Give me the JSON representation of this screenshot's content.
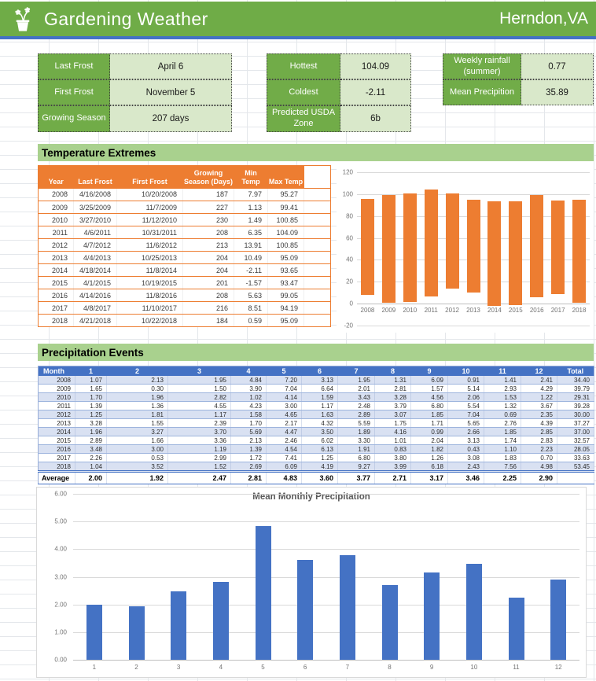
{
  "header": {
    "title": "Gardening Weather",
    "location": "Herndon,VA",
    "icon": "flower-pot-icon"
  },
  "summary_cards": [
    {
      "label": "Last Frost",
      "value": "April 6"
    },
    {
      "label": "First Frost",
      "value": "November 5"
    },
    {
      "label": "Growing Season",
      "value": "207 days"
    },
    {
      "label": "Hottest",
      "value": "104.09"
    },
    {
      "label": "Coldest",
      "value": "-2.11"
    },
    {
      "label": "Predicted USDA Zone",
      "value": "6b"
    },
    {
      "label": "Weekly rainfall (summer)",
      "value": "0.77"
    },
    {
      "label": "Mean Precipition",
      "value": "35.89"
    }
  ],
  "temperature_section": {
    "title": "Temperature Extremes",
    "table": {
      "headers": [
        "Year",
        "Last Frost",
        "First Frost",
        "Growing Season (Days)",
        "Min Temp",
        "Max Temp"
      ],
      "rows": [
        [
          "2008",
          "4/16/2008",
          "10/20/2008",
          "187",
          "7.97",
          "95.27"
        ],
        [
          "2009",
          "3/25/2009",
          "11/7/2009",
          "227",
          "1.13",
          "99.41"
        ],
        [
          "2010",
          "3/27/2010",
          "11/12/2010",
          "230",
          "1.49",
          "100.85"
        ],
        [
          "2011",
          "4/6/2011",
          "10/31/2011",
          "208",
          "6.35",
          "104.09"
        ],
        [
          "2012",
          "4/7/2012",
          "11/6/2012",
          "213",
          "13.91",
          "100.85"
        ],
        [
          "2013",
          "4/4/2013",
          "10/25/2013",
          "204",
          "10.49",
          "95.09"
        ],
        [
          "2014",
          "4/18/2014",
          "11/8/2014",
          "204",
          "-2.11",
          "93.65"
        ],
        [
          "2015",
          "4/1/2015",
          "10/19/2015",
          "201",
          "-1.57",
          "93.47"
        ],
        [
          "2016",
          "4/14/2016",
          "11/8/2016",
          "208",
          "5.63",
          "99.05"
        ],
        [
          "2017",
          "4/8/2017",
          "11/10/2017",
          "216",
          "8.51",
          "94.19"
        ],
        [
          "2018",
          "4/21/2018",
          "10/22/2018",
          "184",
          "0.59",
          "95.09"
        ]
      ]
    }
  },
  "precipitation_section": {
    "title": "Precipitation Events",
    "table": {
      "headers": [
        "Month",
        "1",
        "2",
        "3",
        "4",
        "5",
        "6",
        "7",
        "8",
        "9",
        "10",
        "11",
        "12",
        "Total"
      ],
      "rows": [
        [
          "2008",
          "1.07",
          "2.13",
          "1.95",
          "4.84",
          "7.20",
          "3.13",
          "1.95",
          "1.31",
          "6.09",
          "0.91",
          "1.41",
          "2.41",
          "34.40"
        ],
        [
          "2009",
          "1.65",
          "0.30",
          "1.50",
          "3.90",
          "7.04",
          "6.64",
          "2.01",
          "2.81",
          "1.57",
          "5.14",
          "2.93",
          "4.29",
          "39.79"
        ],
        [
          "2010",
          "1.70",
          "1.96",
          "2.82",
          "1.02",
          "4.14",
          "1.59",
          "3.43",
          "3.28",
          "4.56",
          "2.06",
          "1.53",
          "1.22",
          "29.31"
        ],
        [
          "2011",
          "1.39",
          "1.36",
          "4.55",
          "4.23",
          "3.00",
          "1.17",
          "2.48",
          "3.79",
          "6.80",
          "5.54",
          "1.32",
          "3.67",
          "39.28"
        ],
        [
          "2012",
          "1.25",
          "1.81",
          "1.17",
          "1.58",
          "4.65",
          "1.63",
          "2.89",
          "3.07",
          "1.85",
          "7.04",
          "0.69",
          "2.35",
          "30.00"
        ],
        [
          "2013",
          "3.28",
          "1.55",
          "2.39",
          "1.70",
          "2.17",
          "4.32",
          "5.59",
          "1.75",
          "1.71",
          "5.65",
          "2.76",
          "4.39",
          "37.27"
        ],
        [
          "2014",
          "1.96",
          "3.27",
          "3.70",
          "5.69",
          "4.47",
          "3.50",
          "1.89",
          "4.16",
          "0.99",
          "2.66",
          "1.85",
          "2.85",
          "37.00"
        ],
        [
          "2015",
          "2.89",
          "1.66",
          "3.36",
          "2.13",
          "2.46",
          "6.02",
          "3.30",
          "1.01",
          "2.04",
          "3.13",
          "1.74",
          "2.83",
          "32.57"
        ],
        [
          "2016",
          "3.48",
          "3.00",
          "1.19",
          "1.39",
          "4.54",
          "6.13",
          "1.91",
          "0.83",
          "1.82",
          "0.43",
          "1.10",
          "2.23",
          "28.05"
        ],
        [
          "2017",
          "2.26",
          "0.53",
          "2.99",
          "1.72",
          "7.41",
          "1.25",
          "6.80",
          "3.80",
          "1.26",
          "3.08",
          "1.83",
          "0.70",
          "33.63"
        ],
        [
          "2018",
          "1.04",
          "3.52",
          "1.52",
          "2.69",
          "6.09",
          "4.19",
          "9.27",
          "3.99",
          "6.18",
          "2.43",
          "7.56",
          "4.98",
          "53.45"
        ]
      ],
      "average_label": "Average",
      "average": [
        "2.00",
        "1.92",
        "2.47",
        "2.81",
        "4.83",
        "3.60",
        "3.77",
        "2.71",
        "3.17",
        "3.46",
        "2.25",
        "2.90",
        ""
      ]
    }
  },
  "chart_data": [
    {
      "type": "bar",
      "subtype": "floating-range-columns",
      "title": "",
      "categories": [
        "2008",
        "2009",
        "2010",
        "2011",
        "2012",
        "2013",
        "2014",
        "2015",
        "2016",
        "2017",
        "2018"
      ],
      "series": [
        {
          "name": "Min Temp",
          "values": [
            7.97,
            1.13,
            1.49,
            6.35,
            13.91,
            10.49,
            -2.11,
            -1.57,
            5.63,
            8.51,
            0.59
          ]
        },
        {
          "name": "Max Temp",
          "values": [
            95.27,
            99.41,
            100.85,
            104.09,
            100.85,
            95.09,
            93.65,
            93.47,
            99.05,
            94.19,
            95.09
          ]
        }
      ],
      "ylim": [
        -20,
        120
      ],
      "ytick_step": 20,
      "bar_color": "#ED7D31",
      "grid": true,
      "legend": "none"
    },
    {
      "type": "bar",
      "title": "Mean Monthly Precipitation",
      "categories": [
        "1",
        "2",
        "3",
        "4",
        "5",
        "6",
        "7",
        "8",
        "9",
        "10",
        "11",
        "12"
      ],
      "values": [
        2.0,
        1.92,
        2.47,
        2.81,
        4.83,
        3.6,
        3.77,
        2.71,
        3.17,
        3.46,
        2.25,
        2.9
      ],
      "xlabel": "",
      "ylabel": "",
      "ylim": [
        0,
        6
      ],
      "ytick_step": 1,
      "ytick_format": "0.00",
      "bar_color": "#4472C4",
      "grid": true,
      "legend": "none"
    }
  ],
  "colors": {
    "header_green": "#6FAC47",
    "header_underline_blue": "#4472C4",
    "card_label_green": "#71AC48",
    "card_value_green": "#D9E8CA",
    "section_band_green": "#A9D18E",
    "temp_accent_orange": "#ED7D31",
    "precip_header_blue": "#4472C4",
    "precip_stripe": "#D9E1F2",
    "precip_bar_blue": "#4472C4"
  }
}
